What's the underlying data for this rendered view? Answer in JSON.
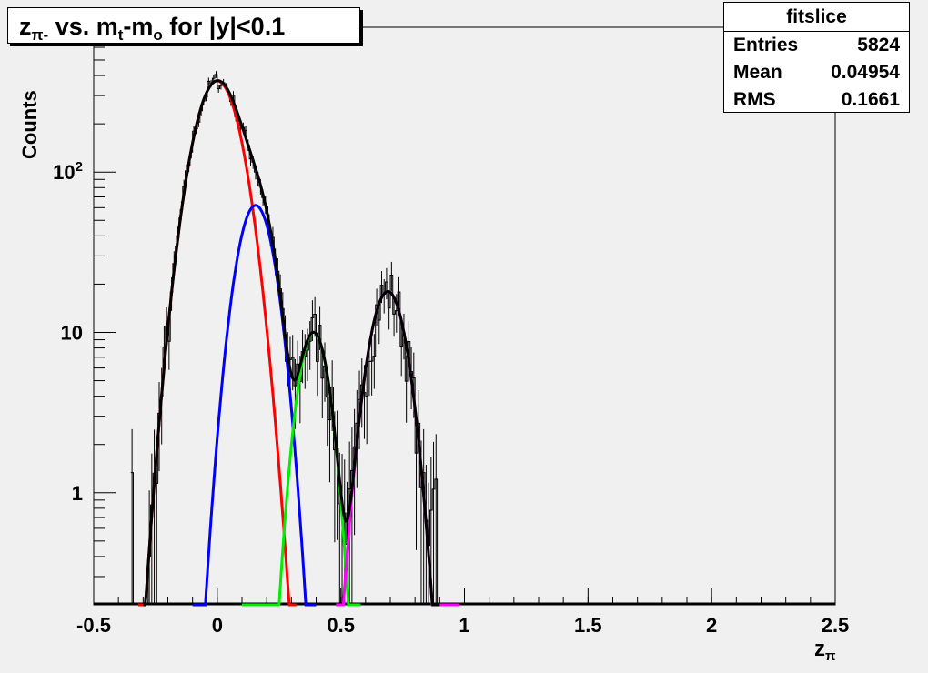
{
  "title": {
    "main": "z",
    "sub": "π-",
    "rest": " vs. m",
    "t": "t",
    "mid": "-m",
    "o": "o",
    "tail": " for |y|<0.1"
  },
  "stats": {
    "name": "fitslice",
    "rows": [
      {
        "label": "Entries",
        "value": "5824"
      },
      {
        "label": "Mean",
        "value": "0.04954"
      },
      {
        "label": "RMS",
        "value": "0.1661"
      }
    ]
  },
  "chart_data": {
    "type": "line",
    "log_y": true,
    "ylabel": "Counts",
    "xlabel": "z",
    "xlabel_sub": "π",
    "xlim": [
      -0.5,
      2.5
    ],
    "ylim": [
      0.2,
      800
    ],
    "x_ticks": [
      -0.5,
      0,
      0.5,
      1,
      1.5,
      2,
      2.5
    ],
    "x_tick_labels": [
      "-0.5",
      "0",
      "0.5",
      "1",
      "1.5",
      "2",
      "2.5"
    ],
    "y_ticks": [
      1,
      10,
      100
    ],
    "y_tick_labels": [
      "1",
      "10",
      "10²"
    ],
    "series": [
      {
        "color": "#ff0000",
        "kind": "gaussian",
        "amp": 370,
        "mean": 0.0,
        "sigma": 0.075,
        "range": [
          -0.32,
          0.32
        ]
      },
      {
        "color": "#0000ff",
        "kind": "gaussian",
        "amp": 62,
        "mean": 0.155,
        "sigma": 0.06,
        "range": [
          -0.1,
          0.4
        ]
      },
      {
        "color": "#00ee00",
        "kind": "gaussian",
        "amp": 10,
        "mean": 0.39,
        "sigma": 0.05,
        "range": [
          0.1,
          0.58
        ]
      },
      {
        "color": "#ff00ff",
        "kind": "gaussian",
        "amp": 18,
        "mean": 0.69,
        "sigma": 0.06,
        "range": [
          0.48,
          0.98
        ]
      },
      {
        "color": "#000000",
        "kind": "sum",
        "range": [
          -0.3,
          0.9
        ]
      }
    ]
  },
  "colors": {
    "frame_bg": "#f0f0f0",
    "histogram": "#000000"
  }
}
